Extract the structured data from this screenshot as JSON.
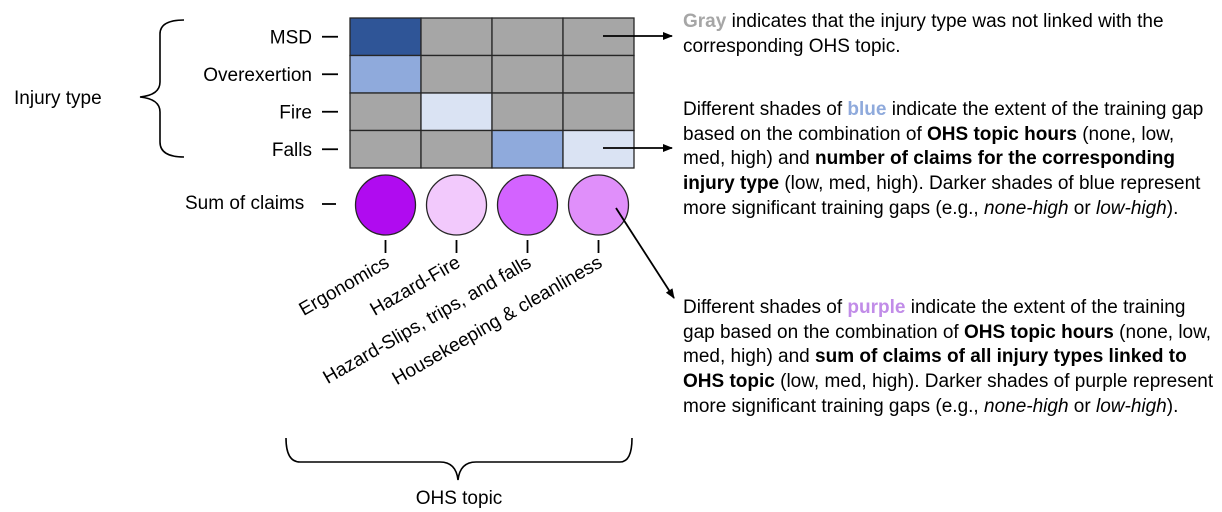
{
  "group_labels": {
    "rows": "Injury type",
    "columns": "OHS topic"
  },
  "sum_label": "Sum of claims",
  "rows": [
    "MSD",
    "Overexertion",
    "Fire",
    "Falls"
  ],
  "columns": [
    "Ergonomics",
    "Hazard-Fire",
    "Hazard-Slips, trips, and falls",
    "Housekeeping & cleanliness"
  ],
  "cells": [
    [
      "#2f5597",
      "#a6a6a6",
      "#a6a6a6",
      "#a6a6a6"
    ],
    [
      "#8faadc",
      "#a6a6a6",
      "#a6a6a6",
      "#a6a6a6"
    ],
    [
      "#a6a6a6",
      "#dae3f3",
      "#a6a6a6",
      "#a6a6a6"
    ],
    [
      "#a6a6a6",
      "#a6a6a6",
      "#8faadc",
      "#dae3f3"
    ]
  ],
  "circles": [
    "#b00bf0",
    "#f2c9fc",
    "#d363ff",
    "#e08ffa"
  ],
  "colors": {
    "gray_word": "#a6a6a6",
    "blue_word": "#8faadc",
    "purple_word": "#c18ce8",
    "grid_line": "#262626",
    "arrow": "#000000"
  },
  "notes": {
    "gray": {
      "keyword": "Gray",
      "text": " indicates that the injury type was not linked with the corresponding OHS topic."
    },
    "blue": {
      "intro": "Different shades of ",
      "keyword": "blue",
      "mid1": " indicate the extent of the training gap based on the combination of ",
      "bold1": "OHS topic hours",
      "mid2": " (none, low, med, high) and ",
      "bold2": "number of claims for the corresponding injury type",
      "mid3": " (low, med, high). Darker shades of blue represent more significant training gaps (e.g., ",
      "ex1": "none-high",
      "or": " or ",
      "ex2": "low-high",
      "end": ")."
    },
    "purple": {
      "intro": "Different shades of ",
      "keyword": "purple",
      "mid1": " indicate the extent of the training gap based on the combination of ",
      "bold1": "OHS topic hours",
      "mid2": " (none, low, med, high) and ",
      "bold2": "sum of claims of all injury types linked to OHS topic",
      "mid3": " (low, med, high). Darker shades of purple represent more significant training gaps (e.g., ",
      "ex1": "none-high",
      "or": " or ",
      "ex2": "low-high",
      "end": ")."
    }
  }
}
